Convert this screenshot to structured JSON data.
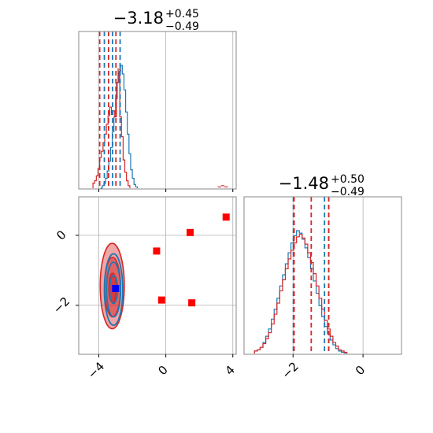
{
  "chart_data": {
    "type": "corner",
    "colors": {
      "series_a": "#1f77b4",
      "series_b": "#d62728",
      "markers": "#ff0000",
      "truth_marker": "#0000ff",
      "grid": "#b0b0b0"
    },
    "series": [
      {
        "name": "",
        "color": "#1f77b4"
      },
      {
        "name": "",
        "color": "#d62728"
      }
    ],
    "panels": [
      {
        "kind": "hist1d",
        "variable_index": 0,
        "title": {
          "value": "−3.18",
          "upper": "+0.45",
          "lower": "−0.49"
        },
        "xlim": [
          -5.2,
          4.2
        ],
        "grid": true,
        "x_ticks": [
          -4,
          0,
          4
        ],
        "quantile_lines": {
          "series_a": [
            -3.67,
            -3.18,
            -2.73
          ],
          "series_b": [
            -3.95,
            -3.42,
            -2.98
          ]
        },
        "histograms": {
          "series_a": {
            "bin_start": -3.9,
            "bin_width": 0.1,
            "counts": [
              0,
              0.02,
              0.04,
              0.08,
              0.14,
              0.22,
              0.33,
              0.46,
              0.58,
              0.73,
              0.86,
              0.95,
              1.0,
              0.93,
              0.8,
              0.62,
              0.44,
              0.28,
              0.15,
              0.08,
              0.03,
              0.01
            ]
          },
          "series_b": {
            "bin_start": -4.35,
            "bin_width": 0.1,
            "counts": [
              0.04,
              0.06,
              0.1,
              0.16,
              0.25,
              0.3,
              0.37,
              0.44,
              0.52,
              0.59,
              0.66,
              0.6,
              0.63,
              0.58,
              0.86,
              0.97,
              0.58,
              0.42,
              0.23,
              0.13,
              0.06,
              0.02
            ]
          },
          "series_b_outliers": [
            {
              "x": 3.2,
              "h": 0.01
            },
            {
              "x": 3.4,
              "h": 0.02
            },
            {
              "x": 3.6,
              "h": 0.01
            }
          ]
        }
      },
      {
        "kind": "hist2d",
        "x_variable_index": 0,
        "y_variable_index": 1,
        "xlim": [
          -5.2,
          4.2
        ],
        "ylim": [
          -3.4,
          1.1
        ],
        "grid": true,
        "x_ticks": [
          -4,
          0,
          4
        ],
        "y_ticks": [
          -2,
          0
        ],
        "contours": {
          "series_b": [
            {
              "level": 0.39,
              "cx": -3.18,
              "cy": -1.5,
              "rx": 0.22,
              "ry": 0.42
            },
            {
              "level": 0.86,
              "cx": -3.18,
              "cy": -1.48,
              "rx": 0.48,
              "ry": 0.85
            },
            {
              "level": 0.99,
              "cx": -3.2,
              "cy": -1.45,
              "rx": 0.72,
              "ry": 1.22
            }
          ],
          "series_a": [
            {
              "level": 0.39,
              "cx": -3.12,
              "cy": -1.55,
              "rx": 0.24,
              "ry": 0.4
            },
            {
              "level": 0.86,
              "cx": -3.12,
              "cy": -1.55,
              "rx": 0.42,
              "ry": 0.78
            },
            {
              "level": 0.99,
              "cx": -3.12,
              "cy": -1.55,
              "rx": 0.55,
              "ry": 1.02
            }
          ]
        },
        "square_markers": [
          {
            "x": -0.55,
            "y": -0.45
          },
          {
            "x": -0.25,
            "y": -1.85
          },
          {
            "x": 1.45,
            "y": 0.08
          },
          {
            "x": 1.55,
            "y": -1.93
          },
          {
            "x": 3.6,
            "y": 0.52
          }
        ],
        "truth_marker": {
          "x": -3.0,
          "y": -1.52
        }
      },
      {
        "kind": "hist1d",
        "variable_index": 1,
        "title": {
          "value": "−1.48",
          "upper": "+0.50",
          "lower": "−0.49"
        },
        "xlim": [
          -3.4,
          1.1
        ],
        "grid": true,
        "x_ticks": [
          -2,
          0
        ],
        "quantile_lines": {
          "series_a": [
            -1.99,
            -1.1,
            -0.98
          ],
          "series_b": [
            -1.97,
            -1.48,
            -0.98
          ]
        },
        "histograms": {
          "series_a": {
            "bin_start": -3.1,
            "bin_width": 0.08,
            "counts": [
              0.02,
              0.03,
              0.05,
              0.09,
              0.14,
              0.2,
              0.28,
              0.36,
              0.45,
              0.55,
              0.64,
              0.73,
              0.82,
              0.9,
              0.96,
              1.0,
              0.98,
              0.93,
              0.86,
              0.78,
              0.69,
              0.59,
              0.49,
              0.39,
              0.3,
              0.22,
              0.16,
              0.11,
              0.07,
              0.04,
              0.02,
              0.01,
              0.005
            ]
          },
          "series_b": {
            "bin_start": -3.1,
            "bin_width": 0.08,
            "counts": [
              0.02,
              0.03,
              0.05,
              0.08,
              0.12,
              0.17,
              0.24,
              0.32,
              0.41,
              0.51,
              0.6,
              0.69,
              0.77,
              0.84,
              0.9,
              0.95,
              0.97,
              0.94,
              0.89,
              0.82,
              0.74,
              0.65,
              0.55,
              0.45,
              0.36,
              0.27,
              0.2,
              0.14,
              0.09,
              0.06,
              0.03,
              0.02,
              0.01
            ]
          }
        }
      }
    ]
  }
}
